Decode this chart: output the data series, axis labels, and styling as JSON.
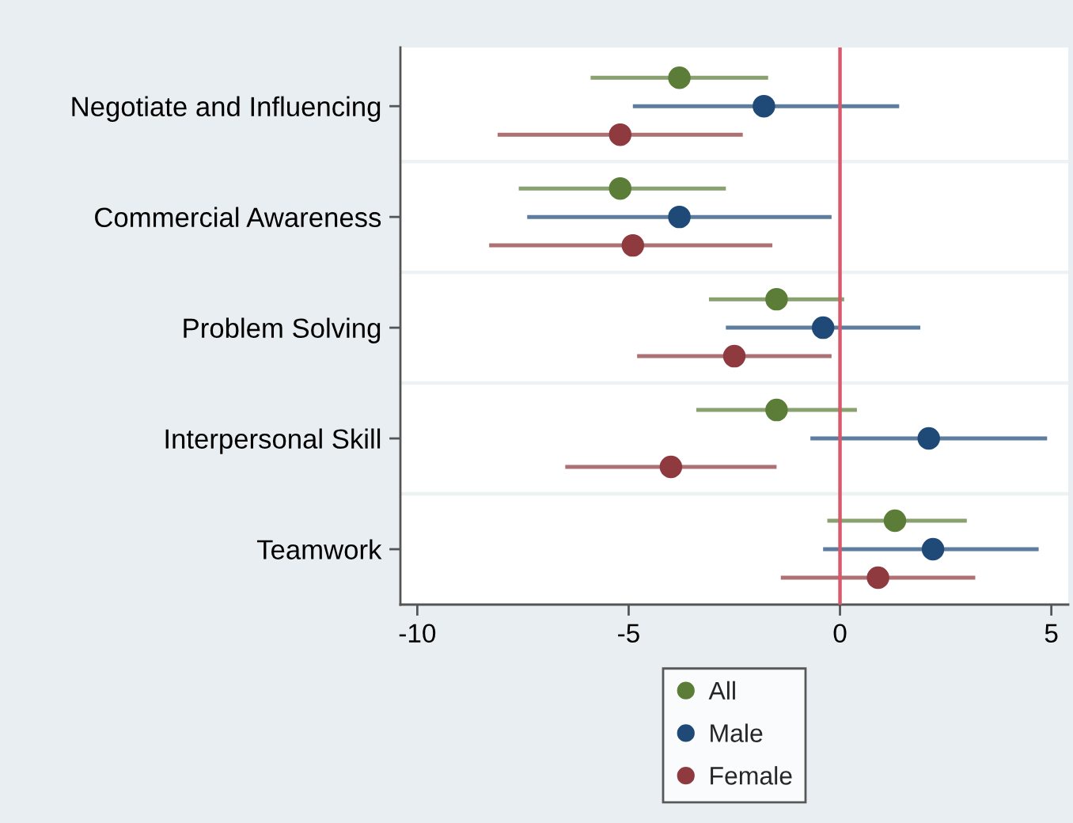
{
  "chart_data": {
    "type": "scatter",
    "orientation": "horizontal",
    "marker": "circle",
    "categories": [
      "Negotiate and Influencing",
      "Commercial Awareness",
      "Problem Solving",
      "Interpersonal Skill",
      "Teamwork"
    ],
    "series": [
      {
        "name": "All",
        "color": "#5b7d38",
        "values": [
          -3.8,
          -5.2,
          -1.5,
          -1.5,
          1.3
        ],
        "errors": [
          [
            -5.9,
            -1.7
          ],
          [
            -7.6,
            -2.7
          ],
          [
            -3.1,
            0.1
          ],
          [
            -3.4,
            0.4
          ],
          [
            -0.3,
            3.0
          ]
        ]
      },
      {
        "name": "Male",
        "color": "#1f4a78",
        "values": [
          -1.8,
          -3.8,
          -0.4,
          2.1,
          2.2
        ],
        "errors": [
          [
            -4.9,
            1.4
          ],
          [
            -7.4,
            -0.2
          ],
          [
            -2.7,
            1.9
          ],
          [
            -0.7,
            4.9
          ],
          [
            -0.4,
            4.7
          ]
        ]
      },
      {
        "name": "Female",
        "color": "#8e3a3f",
        "values": [
          -5.2,
          -4.9,
          -2.5,
          -4.0,
          0.9
        ],
        "errors": [
          [
            -8.1,
            -2.3
          ],
          [
            -8.3,
            -1.6
          ],
          [
            -4.8,
            -0.2
          ],
          [
            -6.5,
            -1.5
          ],
          [
            -1.4,
            3.2
          ]
        ]
      }
    ],
    "xlim": [
      -10.4,
      5.4
    ],
    "xticks": [
      -10,
      -5,
      0,
      5
    ],
    "ref_lines": [
      {
        "axis": "x",
        "value": 0,
        "color": "#d65a6c"
      }
    ],
    "grid": "y",
    "legend": "bottom"
  }
}
